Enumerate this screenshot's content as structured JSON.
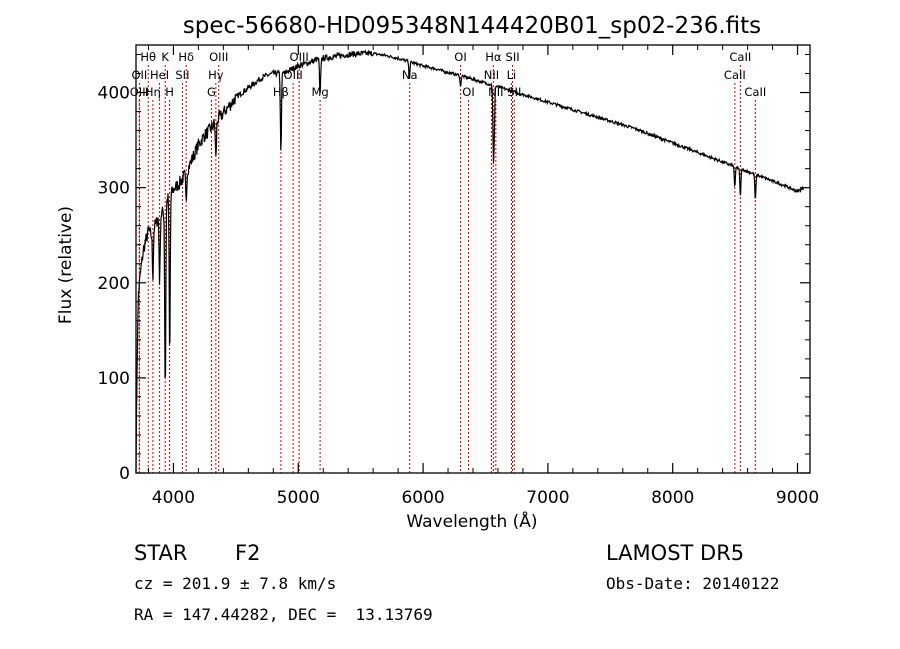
{
  "chart_data": {
    "type": "line",
    "title": "spec-56680-HD095348N144420B01_sp02-236.fits",
    "xlabel": "Wavelength (Å)",
    "ylabel": "Flux (relative)",
    "xlim": [
      3700,
      9100
    ],
    "ylim": [
      0,
      450
    ],
    "xticks": [
      4000,
      5000,
      6000,
      7000,
      8000,
      9000
    ],
    "yticks": [
      0,
      100,
      200,
      300,
      400
    ],
    "grid": false,
    "series": [
      {
        "points": [
          [
            3700,
            5
          ],
          [
            3710,
            130
          ],
          [
            3720,
            190
          ],
          [
            3740,
            215
          ],
          [
            3760,
            235
          ],
          [
            3780,
            245
          ],
          [
            3800,
            255
          ],
          [
            3820,
            250
          ],
          [
            3840,
            258
          ],
          [
            3860,
            262
          ],
          [
            3880,
            270
          ],
          [
            3900,
            272
          ],
          [
            3920,
            275
          ],
          [
            3940,
            285
          ],
          [
            3960,
            290
          ],
          [
            3980,
            293
          ],
          [
            4000,
            298
          ],
          [
            4050,
            305
          ],
          [
            4100,
            315
          ],
          [
            4150,
            330
          ],
          [
            4200,
            345
          ],
          [
            4250,
            355
          ],
          [
            4300,
            362
          ],
          [
            4340,
            370
          ],
          [
            4380,
            375
          ],
          [
            4420,
            382
          ],
          [
            4460,
            388
          ],
          [
            4500,
            395
          ],
          [
            4550,
            400
          ],
          [
            4600,
            405
          ],
          [
            4650,
            410
          ],
          [
            4700,
            415
          ],
          [
            4750,
            418
          ],
          [
            4800,
            420
          ],
          [
            4850,
            420
          ],
          [
            4900,
            421
          ],
          [
            4950,
            425
          ],
          [
            5000,
            428
          ],
          [
            5050,
            430
          ],
          [
            5100,
            432
          ],
          [
            5150,
            435
          ],
          [
            5200,
            436
          ],
          [
            5300,
            438
          ],
          [
            5400,
            440
          ],
          [
            5500,
            441
          ],
          [
            5600,
            441
          ],
          [
            5700,
            439
          ],
          [
            5800,
            436
          ],
          [
            5900,
            432
          ],
          [
            6000,
            428
          ],
          [
            6100,
            425
          ],
          [
            6200,
            421
          ],
          [
            6300,
            418
          ],
          [
            6400,
            414
          ],
          [
            6500,
            410
          ],
          [
            6600,
            406
          ],
          [
            6700,
            402
          ],
          [
            6800,
            398
          ],
          [
            6900,
            394
          ],
          [
            7000,
            390
          ],
          [
            7100,
            386
          ],
          [
            7200,
            382
          ],
          [
            7300,
            378
          ],
          [
            7400,
            374
          ],
          [
            7500,
            370
          ],
          [
            7600,
            366
          ],
          [
            7700,
            362
          ],
          [
            7800,
            357
          ],
          [
            7900,
            352
          ],
          [
            8000,
            347
          ],
          [
            8100,
            342
          ],
          [
            8200,
            337
          ],
          [
            8300,
            332
          ],
          [
            8400,
            327
          ],
          [
            8500,
            322
          ],
          [
            8600,
            317
          ],
          [
            8700,
            312
          ],
          [
            8800,
            307
          ],
          [
            8900,
            302
          ],
          [
            9000,
            296
          ],
          [
            9050,
            300
          ]
        ]
      }
    ],
    "absorption_dips": [
      {
        "x": 3835,
        "depth": 50
      },
      {
        "x": 3889,
        "depth": 70
      },
      {
        "x": 3934,
        "depth": 200
      },
      {
        "x": 3970,
        "depth": 175
      },
      {
        "x": 4102,
        "depth": 30
      },
      {
        "x": 4340,
        "depth": 40
      },
      {
        "x": 4861,
        "depth": 85
      },
      {
        "x": 5175,
        "depth": 40
      },
      {
        "x": 5890,
        "depth": 18
      },
      {
        "x": 6300,
        "depth": 12
      },
      {
        "x": 6563,
        "depth": 70
      },
      {
        "x": 6570,
        "depth": 40
      },
      {
        "x": 8498,
        "depth": 22
      },
      {
        "x": 8542,
        "depth": 30
      },
      {
        "x": 8662,
        "depth": 28
      }
    ],
    "line_markers": [
      {
        "label": "Hθ",
        "x": 3798,
        "row": 0
      },
      {
        "label": "OII",
        "x": 3727,
        "row": 1
      },
      {
        "label": "OIII",
        "x": 3727,
        "row": 2
      },
      {
        "label": "K",
        "x": 3934,
        "row": 0
      },
      {
        "label": "HeI",
        "x": 3889,
        "row": 1
      },
      {
        "label": "Hη",
        "x": 3835,
        "row": 2
      },
      {
        "label": "Hδ",
        "x": 4102,
        "row": 0
      },
      {
        "label": "SII",
        "x": 4072,
        "row": 1
      },
      {
        "label": "H",
        "x": 3969,
        "row": 2
      },
      {
        "label": "OIII",
        "x": 4363,
        "row": 0
      },
      {
        "label": "Hγ",
        "x": 4340,
        "row": 1
      },
      {
        "label": "G",
        "x": 4305,
        "row": 2
      },
      {
        "label": "OIII",
        "x": 5007,
        "row": 0
      },
      {
        "label": "OIII",
        "x": 4959,
        "row": 1
      },
      {
        "label": "Hβ",
        "x": 4861,
        "row": 2
      },
      {
        "label": "Mg",
        "x": 5175,
        "row": 2
      },
      {
        "label": "Na",
        "x": 5893,
        "row": 1
      },
      {
        "label": "OI",
        "x": 6300,
        "row": 0
      },
      {
        "label": "OI",
        "x": 6364,
        "row": 2
      },
      {
        "label": "Hα",
        "x": 6563,
        "row": 0
      },
      {
        "label": "NII",
        "x": 6548,
        "row": 1
      },
      {
        "label": "NII",
        "x": 6583,
        "row": 2
      },
      {
        "label": "SII",
        "x": 6717,
        "row": 0
      },
      {
        "label": "Li",
        "x": 6708,
        "row": 1
      },
      {
        "label": "SII",
        "x": 6731,
        "row": 2
      },
      {
        "label": "CaII",
        "x": 8542,
        "row": 0
      },
      {
        "label": "CaII",
        "x": 8498,
        "row": 1
      },
      {
        "label": "CaII",
        "x": 8662,
        "row": 2
      }
    ],
    "colors": {
      "spectrum": "#000000",
      "markers": "#cc0000",
      "axes": "#000000"
    }
  },
  "info": {
    "object_class": "STAR",
    "subclass": "F2",
    "survey": "LAMOST DR5",
    "cz": "cz = 201.9 ± 7.8 km/s",
    "obs_date": "Obs-Date: 20140122",
    "coords": "RA = 147.44282, DEC =  13.13769"
  }
}
